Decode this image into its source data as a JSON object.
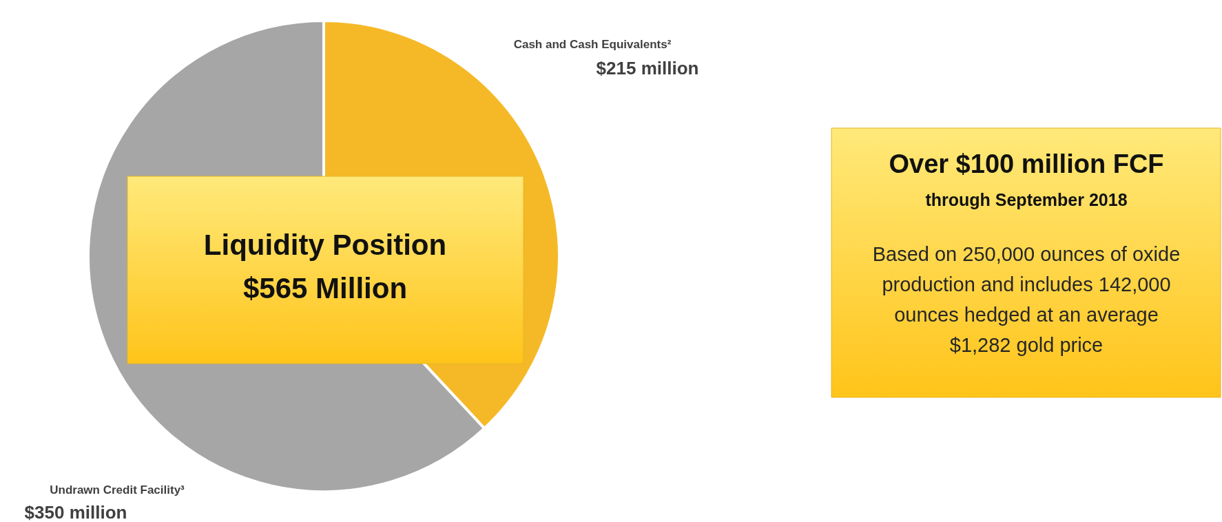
{
  "chart_data": {
    "type": "pie",
    "title": "Liquidity Position",
    "subtitle": "$565 Million",
    "categories": [
      "Cash and Cash Equivalents²",
      "Undrawn Credit Facility³"
    ],
    "values": [
      215,
      350
    ],
    "value_labels": [
      "$215 million",
      "$350 million"
    ],
    "colors": [
      "#f5b928",
      "#a6a6a6"
    ],
    "annotations": [
      "Over $100 million FCF",
      "through September 2018",
      "Based on 250,000 ounces of oxide production and includes 142,000 ounces hedged at an average $1,282 gold price"
    ]
  }
}
